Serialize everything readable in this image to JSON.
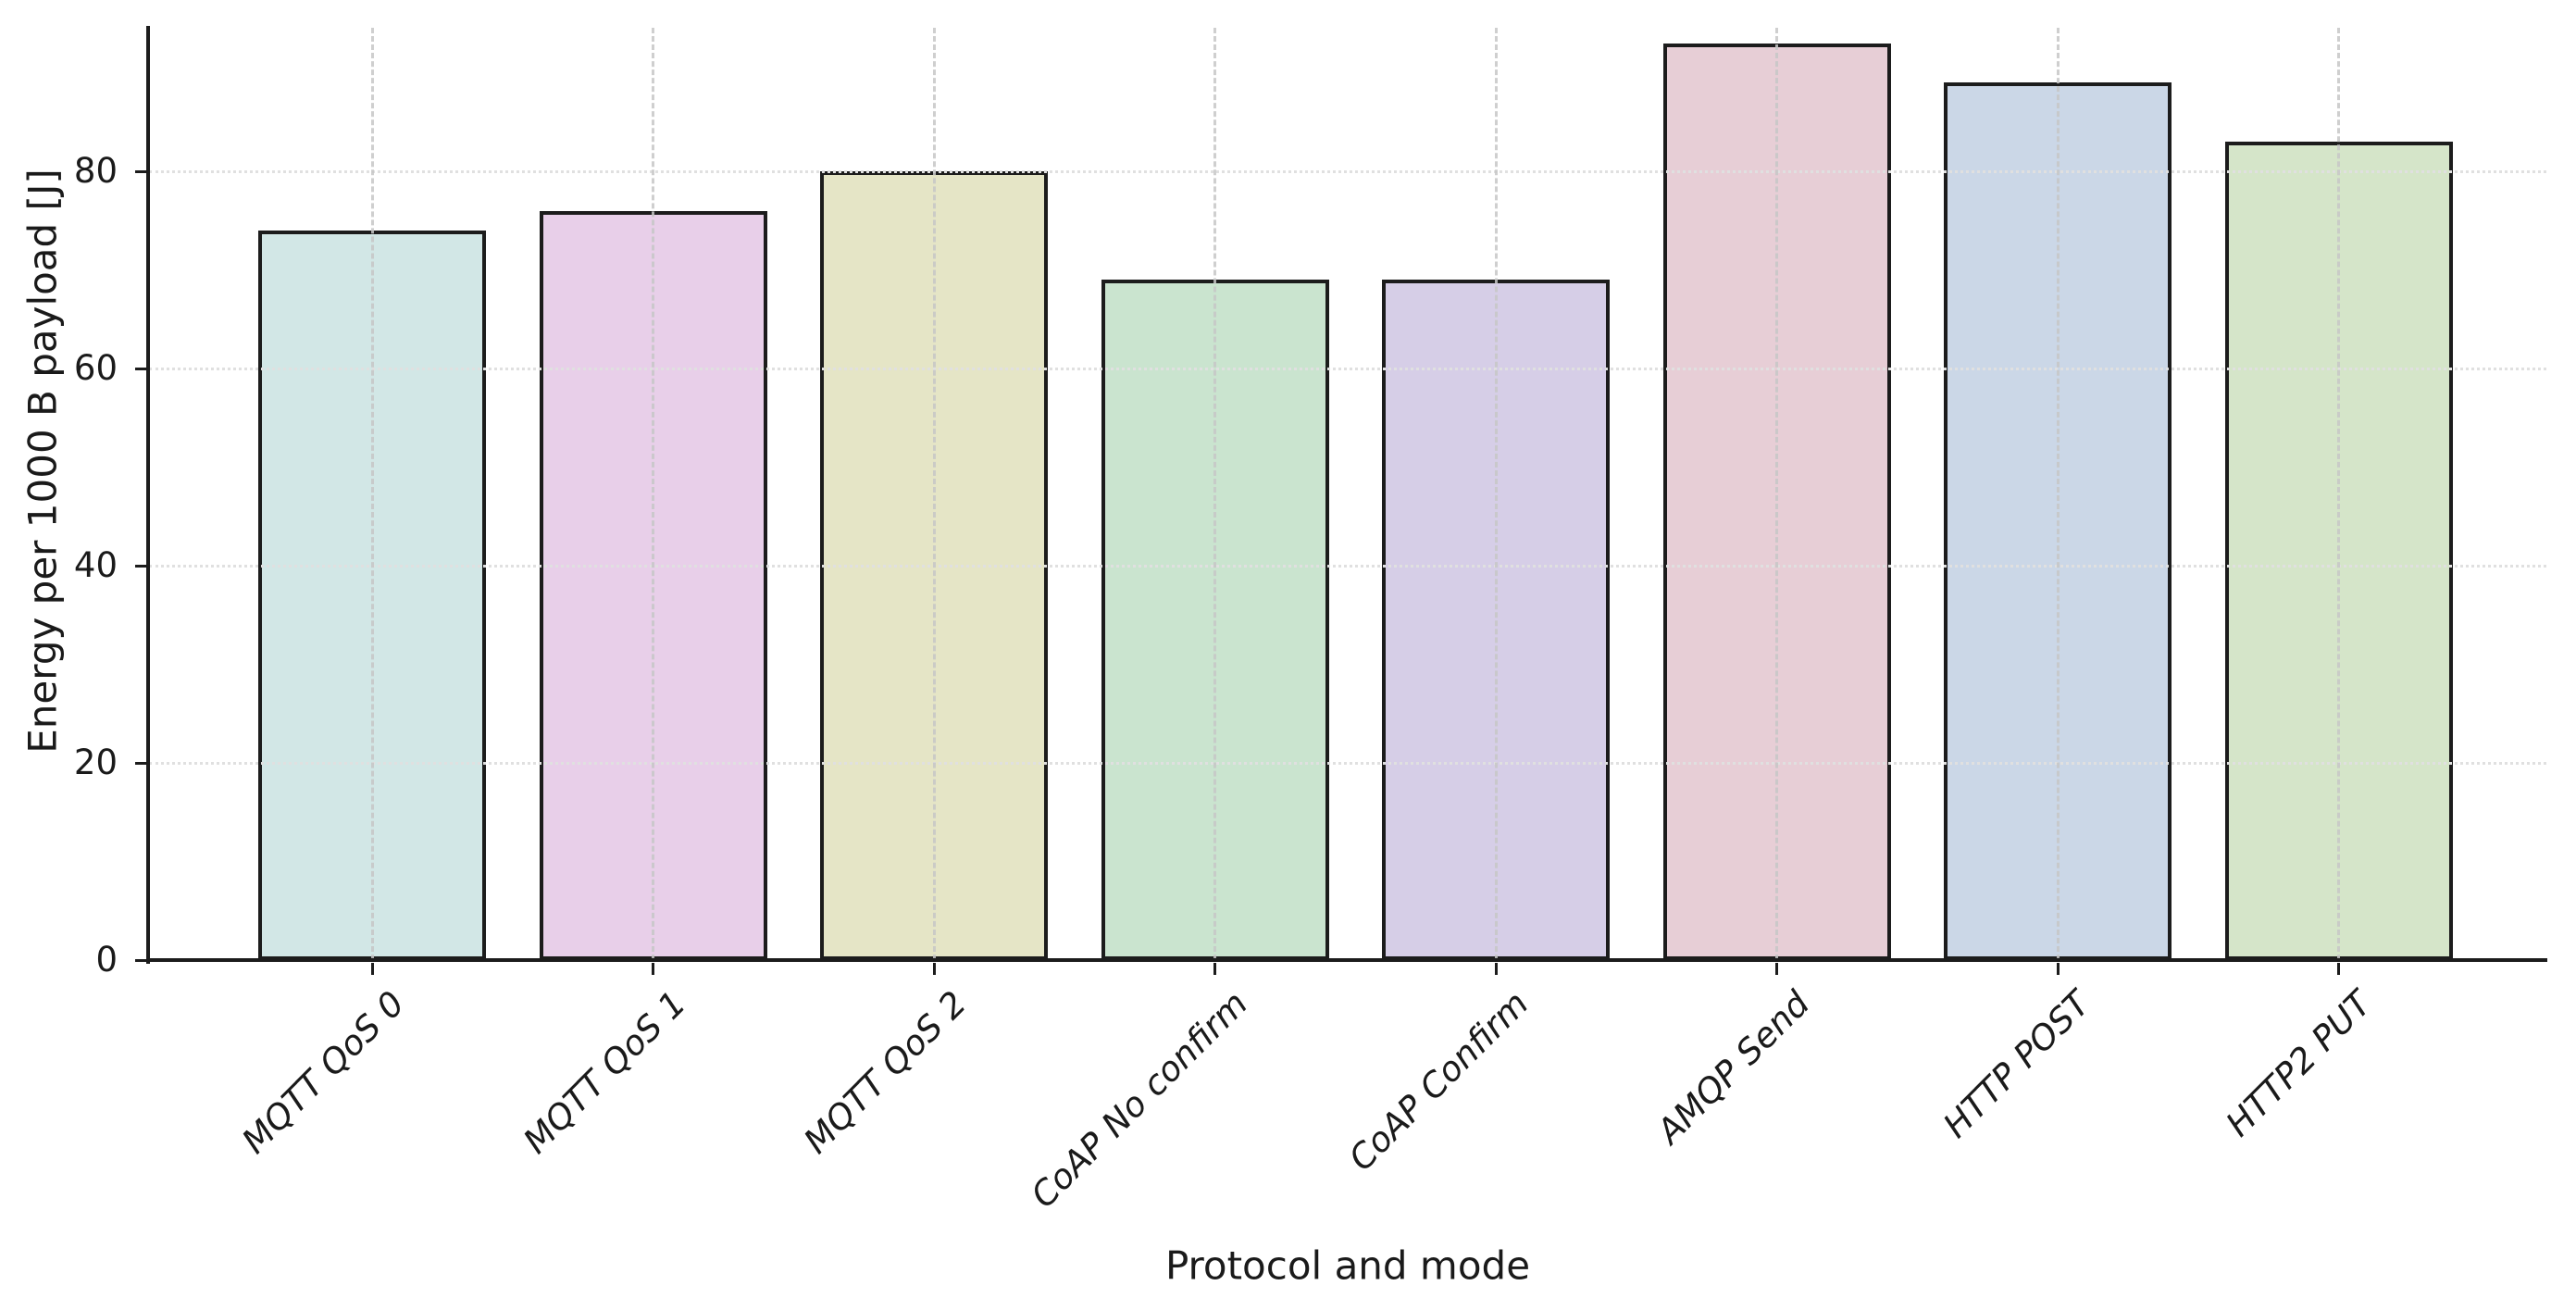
{
  "chart_data": {
    "type": "bar",
    "title": "",
    "xlabel": "Protocol and mode",
    "ylabel": "Energy per 1000 B payload [J]",
    "categories": [
      "MQTT QoS 0",
      "MQTT QoS 1",
      "MQTT QoS 2",
      "CoAP No confirm",
      "CoAP Confirm",
      "AMQP Send",
      "HTTP POST",
      "HTTP2 PUT"
    ],
    "values": [
      74,
      76,
      80,
      69,
      69,
      93,
      89,
      83
    ],
    "bar_colors": [
      "#d2e7e6",
      "#e8cfe9",
      "#e5e5c6",
      "#cae4cf",
      "#d6cee7",
      "#e7ced6",
      "#cbd7e7",
      "#d5e5c9"
    ],
    "bar_edge_color": "#1c1c1c",
    "yticks": [
      0,
      20,
      40,
      60,
      80
    ],
    "ylim": [
      0,
      94.5
    ],
    "grid": {
      "horizontal_style": "dotted",
      "horizontal_color": "#e0e0e0",
      "vertical_style": "dashed",
      "vertical_color": "#c7c7c7"
    },
    "x_tick_rotation_deg": 45,
    "x_tick_font_style": "italic",
    "legend": null,
    "background_color": "#ffffff"
  }
}
